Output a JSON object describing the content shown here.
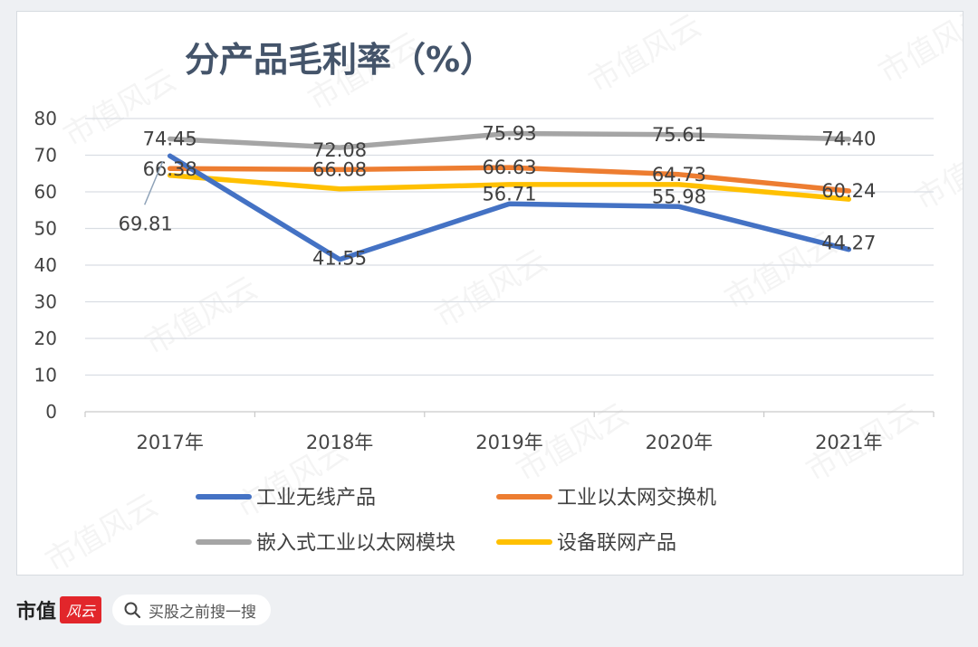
{
  "chart_data": {
    "type": "line",
    "title": "分产品毛利率（%）",
    "categories": [
      "2017年",
      "2018年",
      "2019年",
      "2020年",
      "2021年"
    ],
    "ylim": [
      0,
      80
    ],
    "yticks": [
      "0",
      "10",
      "20",
      "30",
      "40",
      "50",
      "60",
      "70",
      "80"
    ],
    "grid": true,
    "legend_position": "bottom",
    "series": [
      {
        "name": "工业无线产品",
        "color": "#4472c4",
        "values": [
          69.81,
          41.55,
          56.71,
          55.98,
          44.27
        ],
        "labels": [
          "69.81",
          "41.55",
          "56.71",
          "55.98",
          "44.27"
        ]
      },
      {
        "name": "工业以太网交换机",
        "color": "#ed7d31",
        "values": [
          66.38,
          66.08,
          66.63,
          64.73,
          60.24
        ],
        "labels": [
          "66.38",
          "66.08",
          "66.63",
          "64.73",
          "60.24"
        ]
      },
      {
        "name": "嵌入式工业以太网模块",
        "color": "#a5a5a5",
        "values": [
          74.45,
          72.08,
          75.93,
          75.61,
          74.4
        ],
        "labels": [
          "74.45",
          "72.08",
          "75.93",
          "75.61",
          "74.40"
        ]
      },
      {
        "name": "设备联网产品",
        "color": "#ffc000",
        "values": [
          64.5,
          60.8,
          62.0,
          62.0,
          58.0
        ],
        "labels": []
      }
    ]
  },
  "footer": {
    "brand_text": "市值",
    "brand_logo_text": "风云",
    "search_icon": "search-icon",
    "search_text": "买股之前搜一搜"
  },
  "watermark_text": "市值风云"
}
